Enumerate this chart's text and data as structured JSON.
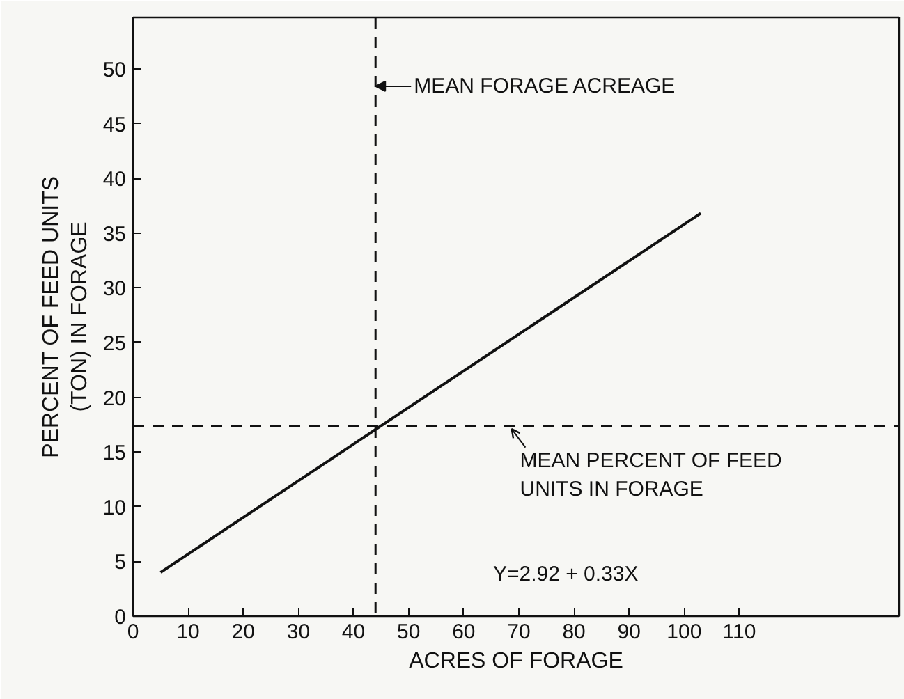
{
  "chart_data": {
    "type": "line",
    "xlabel": "ACRES OF FORAGE",
    "ylabel": "PERCENT OF FEED UNITS\n(TON) IN FORAGE",
    "series": [
      {
        "color": "#111111",
        "x": [
          5,
          103
        ],
        "values": [
          4.0,
          36.8
        ]
      }
    ],
    "xlim": [
      0,
      139
    ],
    "ylim": [
      0,
      54.7
    ],
    "xticks": [
      0,
      10,
      20,
      30,
      40,
      50,
      60,
      70,
      80,
      90,
      100,
      110
    ],
    "yticks": [
      0,
      5,
      10,
      15,
      20,
      25,
      30,
      35,
      40,
      45,
      50
    ],
    "ref_lines": [
      {
        "axis": "x",
        "value": 44,
        "label": "MEAN FORAGE ACREAGE",
        "color": "#111111",
        "line_style": "dashed"
      },
      {
        "axis": "y",
        "value": 17.4,
        "label": "MEAN PERCENT OF FEED\nUNITS IN FORAGE",
        "color": "#111111",
        "line_style": "dashed"
      }
    ],
    "annotations": [
      "Y=2.92 + 0.33X"
    ],
    "grid": false,
    "marker": "none",
    "line_style": "solid"
  }
}
